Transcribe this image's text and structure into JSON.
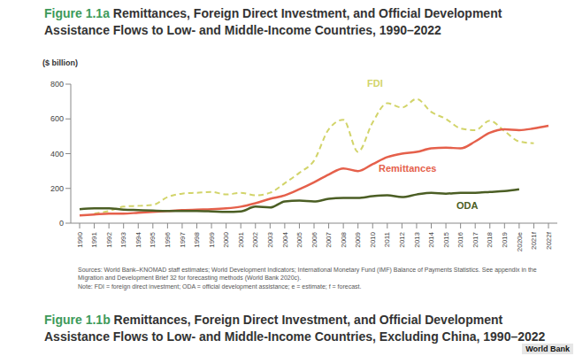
{
  "chart_data": {
    "type": "line",
    "figure_label": "Figure 1.1a",
    "title": "Remittances, Foreign Direct Investment, and Official Development Assistance Flows to Low- and Middle-Income Countries, 1990–2022",
    "y_label": "($ billion)",
    "categories": [
      "1990",
      "1991",
      "1992",
      "1993",
      "1994",
      "1995",
      "1996",
      "1997",
      "1998",
      "1999",
      "2000",
      "2001",
      "2002",
      "2003",
      "2004",
      "2005",
      "2006",
      "2007",
      "2008",
      "2009",
      "2010",
      "2011",
      "2012",
      "2013",
      "2014",
      "2015",
      "2016",
      "2017",
      "2018",
      "2019",
      "2020e",
      "2021f",
      "2022f"
    ],
    "series": [
      {
        "name": "FDI",
        "color": "#d2d46a",
        "line_style": "dashed",
        "values": [
          null,
          55,
          70,
          95,
          100,
          105,
          150,
          170,
          175,
          180,
          165,
          175,
          160,
          175,
          230,
          290,
          360,
          540,
          595,
          410,
          580,
          690,
          665,
          715,
          640,
          600,
          545,
          535,
          590,
          530,
          470,
          460,
          null
        ]
      },
      {
        "name": "Remittances",
        "color": "#e5604b",
        "line_style": "solid",
        "values": [
          45,
          50,
          55,
          55,
          60,
          65,
          70,
          75,
          78,
          80,
          85,
          95,
          115,
          140,
          160,
          195,
          235,
          280,
          315,
          300,
          340,
          380,
          400,
          410,
          430,
          435,
          430,
          470,
          520,
          540,
          535,
          545,
          560
        ]
      },
      {
        "name": "ODA",
        "color": "#4b5e24",
        "line_style": "solid",
        "values": [
          80,
          85,
          85,
          78,
          75,
          72,
          70,
          70,
          70,
          68,
          65,
          68,
          95,
          90,
          125,
          130,
          125,
          140,
          145,
          145,
          155,
          160,
          150,
          165,
          175,
          170,
          175,
          175,
          180,
          185,
          195,
          null,
          null
        ]
      }
    ],
    "ylim": [
      0,
      800
    ],
    "yticks": [
      0,
      200,
      400,
      600,
      800
    ],
    "grid": false,
    "source": "Sources: World Bank–KNOMAD staff estimates; World Development Indicators; International Monetary Fund (IMF) Balance of Payments Statistics. See appendix in the Migration and Development Brief 32 for forecasting methods (World Bank 2020c).",
    "note": "Note: FDI = foreign direct investment; ODA = official development assistance; e = estimate; f = forecast."
  },
  "next_figure": {
    "figure_label": "Figure 1.1b",
    "title": "Remittances, Foreign Direct Investment, and Official Development Assistance Flows to Low- and Middle-Income Countries, Excluding China, 1990–2022"
  },
  "watermark": "World Bank"
}
